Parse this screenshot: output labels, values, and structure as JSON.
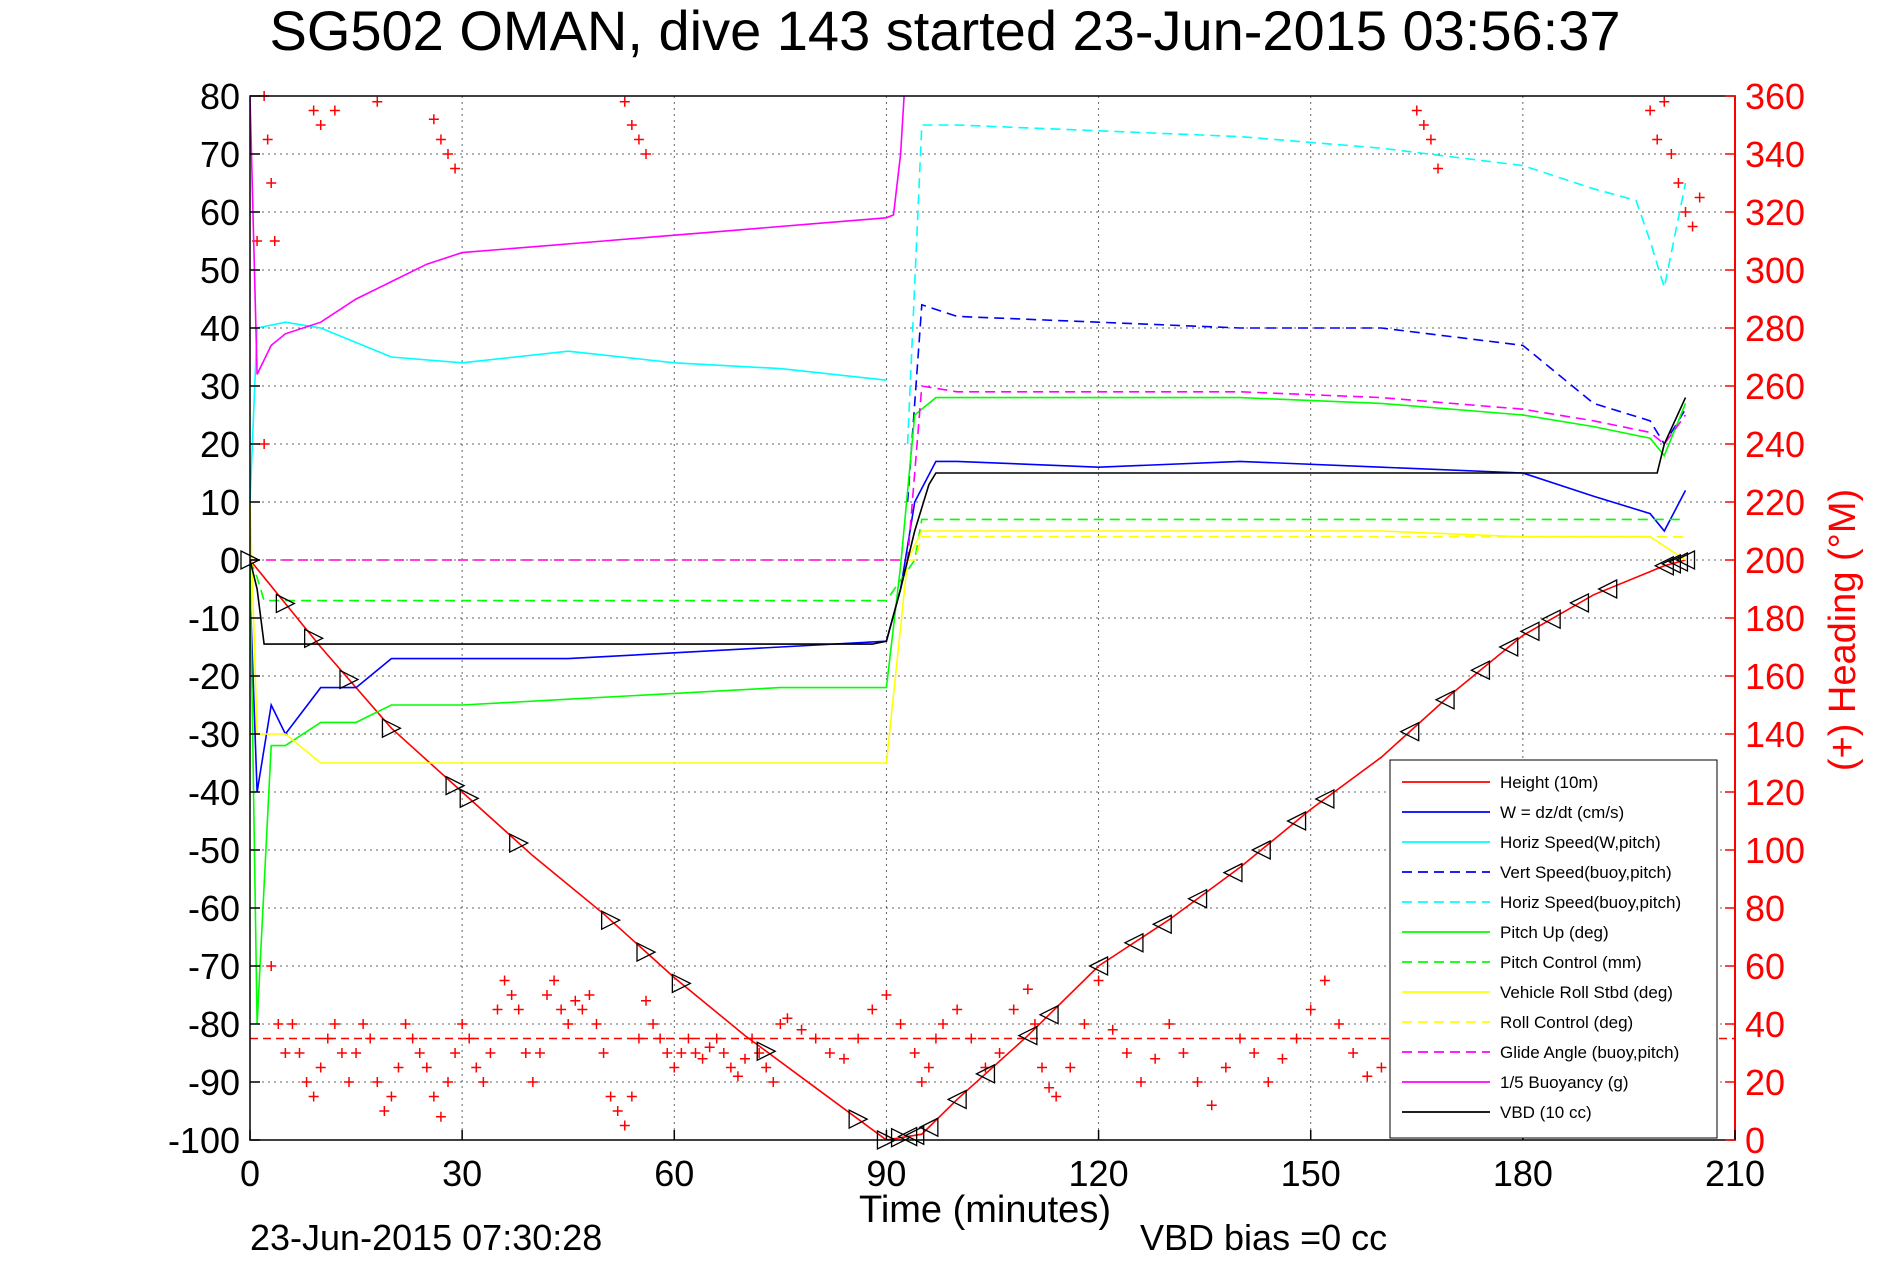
{
  "chart_data": {
    "type": "line",
    "title": "SG502 OMAN, dive 143 started 23-Jun-2015 03:56:37",
    "xlabel": "Time (minutes)",
    "ylabel": "",
    "ylabel_right": "(+) Heading (°M)",
    "xlim": [
      0,
      210
    ],
    "ylim": [
      -100,
      80
    ],
    "ylim_right": [
      0,
      360
    ],
    "x_ticks": [
      "0",
      "30",
      "60",
      "90",
      "120",
      "150",
      "180",
      "210"
    ],
    "y_ticks": [
      "80",
      "70",
      "60",
      "50",
      "40",
      "30",
      "20",
      "10",
      "0",
      "-10",
      "-20",
      "-30",
      "-40",
      "-50",
      "-60",
      "-70",
      "-80",
      "-90",
      "-100"
    ],
    "y_ticks_right": [
      "360",
      "340",
      "320",
      "300",
      "280",
      "260",
      "240",
      "220",
      "200",
      "180",
      "160",
      "140",
      "120",
      "100",
      "80",
      "60",
      "40",
      "20",
      "0"
    ],
    "grid": true,
    "legend_position": "bottom-right",
    "footer_left": "23-Jun-2015 07:30:28",
    "footer_right": "VBD bias =0 cc",
    "series": [
      {
        "name": "Height (10m)",
        "color": "#ff0000",
        "dash": "solid",
        "x": [
          0,
          10,
          20,
          30,
          40,
          50,
          60,
          70,
          80,
          90,
          95,
          100,
          110,
          120,
          130,
          140,
          150,
          160,
          170,
          180,
          190,
          200,
          203
        ],
        "y": [
          0,
          -15,
          -29,
          -40,
          -51,
          -61,
          -72,
          -82,
          -91,
          -100,
          -99,
          -93,
          -82,
          -70,
          -62,
          -53,
          -43,
          -34,
          -23,
          -13,
          -6,
          -1,
          0
        ]
      },
      {
        "name": "W = dz/dt (cm/s)",
        "color": "#0000ff",
        "dash": "solid",
        "x": [
          0,
          1,
          3,
          5,
          10,
          15,
          20,
          30,
          45,
          60,
          75,
          90,
          92,
          94,
          97,
          100,
          120,
          140,
          160,
          180,
          190,
          198,
          200,
          203
        ],
        "y": [
          -5,
          -40,
          -25,
          -30,
          -22,
          -22,
          -17,
          -17,
          -17,
          -16,
          -15,
          -14,
          -5,
          10,
          17,
          17,
          16,
          17,
          16,
          15,
          11,
          8,
          5,
          12
        ]
      },
      {
        "name": "Horiz Speed(W,pitch)",
        "color": "#00ffff",
        "dash": "solid",
        "x": [
          0,
          1,
          5,
          10,
          20,
          30,
          45,
          60,
          75,
          90
        ],
        "y": [
          10,
          40,
          41,
          40,
          35,
          34,
          36,
          34,
          33,
          31
        ]
      },
      {
        "name": "Vert Speed(buoy,pitch)",
        "color": "#0000ff",
        "dash": "dashed",
        "x": [
          93,
          95,
          100,
          120,
          140,
          160,
          180,
          190,
          198,
          200,
          203
        ],
        "y": [
          10,
          44,
          42,
          41,
          40,
          40,
          37,
          27,
          24,
          20,
          26
        ]
      },
      {
        "name": "Horiz Speed(buoy,pitch)",
        "color": "#00ffff",
        "dash": "dashed",
        "x": [
          93,
          95,
          100,
          120,
          140,
          160,
          180,
          190,
          196,
          198,
          200,
          203
        ],
        "y": [
          20,
          75,
          75,
          74,
          73,
          71,
          68,
          64,
          62,
          55,
          47,
          65
        ]
      },
      {
        "name": "Pitch Up (deg)",
        "color": "#00ff00",
        "dash": "solid",
        "x": [
          0,
          1,
          3,
          5,
          10,
          15,
          20,
          30,
          45,
          60,
          75,
          90,
          92,
          94,
          97,
          100,
          120,
          140,
          160,
          180,
          190,
          198,
          200,
          203
        ],
        "y": [
          0,
          -80,
          -32,
          -32,
          -28,
          -28,
          -25,
          -25,
          -24,
          -23,
          -22,
          -22,
          -1,
          25,
          28,
          28,
          28,
          28,
          27,
          25,
          23,
          21,
          18,
          27
        ]
      },
      {
        "name": "Pitch Control (mm)",
        "color": "#00ff00",
        "dash": "dashed",
        "x": [
          0,
          1,
          2,
          90,
          94,
          95,
          203
        ],
        "y": [
          0,
          -3,
          -7,
          -7,
          0,
          7,
          7
        ]
      },
      {
        "name": "Vehicle Roll Stbd (deg)",
        "color": "#ffff00",
        "dash": "solid",
        "x": [
          0,
          1,
          5,
          10,
          20,
          30,
          45,
          60,
          75,
          90,
          93,
          95,
          100,
          120,
          140,
          160,
          180,
          190,
          198,
          203
        ],
        "y": [
          10,
          -30,
          -30,
          -35,
          -35,
          -35,
          -35,
          -35,
          -35,
          -35,
          0,
          5,
          5,
          5,
          5,
          5,
          4,
          4,
          4,
          0
        ]
      },
      {
        "name": "Roll Control (deg)",
        "color": "#ffff00",
        "dash": "dashed",
        "x": [
          0,
          1,
          90,
          94,
          95,
          203
        ],
        "y": [
          0,
          0,
          0,
          0,
          4,
          4
        ]
      },
      {
        "name": "Glide Angle (buoy,pitch)",
        "color": "#ff00ff",
        "dash": "dashed",
        "x": [
          0,
          90,
          93,
          95,
          100,
          120,
          140,
          160,
          180,
          190,
          198,
          200,
          203
        ],
        "y": [
          0,
          0,
          0,
          30,
          29,
          29,
          29,
          28,
          26,
          24,
          22,
          20,
          25
        ]
      },
      {
        "name": "1/5 Buoyancy (g)",
        "color": "#ff00ff",
        "dash": "solid",
        "x": [
          0,
          1,
          3,
          5,
          10,
          15,
          20,
          25,
          30,
          40,
          50,
          60,
          70,
          80,
          90,
          91,
          92,
          92.5
        ],
        "y": [
          80,
          32,
          37,
          39,
          41,
          45,
          48,
          51,
          53,
          54,
          55,
          56,
          57,
          58,
          59,
          59.5,
          70,
          80
        ]
      },
      {
        "name": "VBD (10 cc)",
        "color": "#000000",
        "dash": "solid",
        "x": [
          0,
          1,
          2,
          88,
          90,
          92,
          94,
          96,
          97,
          198,
          199,
          200,
          203
        ],
        "y": [
          0,
          -5,
          -14.5,
          -14.5,
          -14,
          -5,
          5,
          13,
          15,
          15,
          15,
          20,
          28
        ]
      }
    ],
    "heading_points": [
      {
        "x": 1,
        "y": 310
      },
      {
        "x": 2,
        "y": 240
      },
      {
        "x": 3,
        "y": 60
      },
      {
        "x": 4,
        "y": 40
      },
      {
        "x": 5,
        "y": 30
      },
      {
        "x": 6,
        "y": 40
      },
      {
        "x": 7,
        "y": 30
      },
      {
        "x": 8,
        "y": 20
      },
      {
        "x": 9,
        "y": 15
      },
      {
        "x": 10,
        "y": 25
      },
      {
        "x": 11,
        "y": 35
      },
      {
        "x": 12,
        "y": 40
      },
      {
        "x": 13,
        "y": 30
      },
      {
        "x": 14,
        "y": 20
      },
      {
        "x": 15,
        "y": 30
      },
      {
        "x": 16,
        "y": 40
      },
      {
        "x": 17,
        "y": 35
      },
      {
        "x": 18,
        "y": 20
      },
      {
        "x": 19,
        "y": 10
      },
      {
        "x": 20,
        "y": 15
      },
      {
        "x": 21,
        "y": 25
      },
      {
        "x": 22,
        "y": 40
      },
      {
        "x": 23,
        "y": 35
      },
      {
        "x": 24,
        "y": 30
      },
      {
        "x": 25,
        "y": 25
      },
      {
        "x": 26,
        "y": 15
      },
      {
        "x": 27,
        "y": 8
      },
      {
        "x": 28,
        "y": 20
      },
      {
        "x": 29,
        "y": 30
      },
      {
        "x": 30,
        "y": 40
      },
      {
        "x": 31,
        "y": 35
      },
      {
        "x": 32,
        "y": 25
      },
      {
        "x": 33,
        "y": 20
      },
      {
        "x": 34,
        "y": 30
      },
      {
        "x": 35,
        "y": 45
      },
      {
        "x": 36,
        "y": 55
      },
      {
        "x": 37,
        "y": 50
      },
      {
        "x": 38,
        "y": 45
      },
      {
        "x": 39,
        "y": 30
      },
      {
        "x": 40,
        "y": 20
      },
      {
        "x": 41,
        "y": 30
      },
      {
        "x": 42,
        "y": 50
      },
      {
        "x": 43,
        "y": 55
      },
      {
        "x": 44,
        "y": 45
      },
      {
        "x": 45,
        "y": 40
      },
      {
        "x": 46,
        "y": 48
      },
      {
        "x": 47,
        "y": 45
      },
      {
        "x": 48,
        "y": 50
      },
      {
        "x": 49,
        "y": 40
      },
      {
        "x": 50,
        "y": 30
      },
      {
        "x": 51,
        "y": 15
      },
      {
        "x": 52,
        "y": 10
      },
      {
        "x": 53,
        "y": 5
      },
      {
        "x": 54,
        "y": 15
      },
      {
        "x": 55,
        "y": 35
      },
      {
        "x": 56,
        "y": 48
      },
      {
        "x": 57,
        "y": 40
      },
      {
        "x": 58,
        "y": 35
      },
      {
        "x": 59,
        "y": 30
      },
      {
        "x": 60,
        "y": 25
      },
      {
        "x": 61,
        "y": 30
      },
      {
        "x": 62,
        "y": 35
      },
      {
        "x": 63,
        "y": 30
      },
      {
        "x": 64,
        "y": 28
      },
      {
        "x": 65,
        "y": 32
      },
      {
        "x": 66,
        "y": 35
      },
      {
        "x": 67,
        "y": 30
      },
      {
        "x": 68,
        "y": 25
      },
      {
        "x": 69,
        "y": 22
      },
      {
        "x": 70,
        "y": 28
      },
      {
        "x": 71,
        "y": 35
      },
      {
        "x": 72,
        "y": 30
      },
      {
        "x": 73,
        "y": 25
      },
      {
        "x": 74,
        "y": 20
      },
      {
        "x": 75,
        "y": 40
      },
      {
        "x": 76,
        "y": 42
      },
      {
        "x": 78,
        "y": 38
      },
      {
        "x": 80,
        "y": 35
      },
      {
        "x": 82,
        "y": 30
      },
      {
        "x": 84,
        "y": 28
      },
      {
        "x": 86,
        "y": 35
      },
      {
        "x": 88,
        "y": 45
      },
      {
        "x": 90,
        "y": 50
      },
      {
        "x": 92,
        "y": 40
      },
      {
        "x": 94,
        "y": 30
      },
      {
        "x": 95,
        "y": 20
      },
      {
        "x": 96,
        "y": 25
      },
      {
        "x": 97,
        "y": 35
      },
      {
        "x": 98,
        "y": 40
      },
      {
        "x": 100,
        "y": 45
      },
      {
        "x": 102,
        "y": 35
      },
      {
        "x": 104,
        "y": 25
      },
      {
        "x": 106,
        "y": 30
      },
      {
        "x": 108,
        "y": 45
      },
      {
        "x": 110,
        "y": 52
      },
      {
        "x": 111,
        "y": 40
      },
      {
        "x": 112,
        "y": 25
      },
      {
        "x": 113,
        "y": 18
      },
      {
        "x": 114,
        "y": 15
      },
      {
        "x": 116,
        "y": 25
      },
      {
        "x": 118,
        "y": 40
      },
      {
        "x": 120,
        "y": 55
      },
      {
        "x": 122,
        "y": 38
      },
      {
        "x": 124,
        "y": 30
      },
      {
        "x": 126,
        "y": 20
      },
      {
        "x": 128,
        "y": 28
      },
      {
        "x": 130,
        "y": 40
      },
      {
        "x": 132,
        "y": 30
      },
      {
        "x": 134,
        "y": 20
      },
      {
        "x": 136,
        "y": 12
      },
      {
        "x": 138,
        "y": 25
      },
      {
        "x": 140,
        "y": 35
      },
      {
        "x": 142,
        "y": 30
      },
      {
        "x": 144,
        "y": 20
      },
      {
        "x": 146,
        "y": 28
      },
      {
        "x": 148,
        "y": 35
      },
      {
        "x": 150,
        "y": 45
      },
      {
        "x": 152,
        "y": 55
      },
      {
        "x": 154,
        "y": 40
      },
      {
        "x": 156,
        "y": 30
      },
      {
        "x": 158,
        "y": 22
      },
      {
        "x": 160,
        "y": 25
      },
      {
        "x": 162,
        "y": 30
      },
      {
        "x": 164,
        "y": 20
      },
      {
        "x": 166,
        "y": 30
      },
      {
        "x": 2,
        "y": 360
      },
      {
        "x": 2.5,
        "y": 345
      },
      {
        "x": 3,
        "y": 330
      },
      {
        "x": 3.5,
        "y": 310
      },
      {
        "x": 9,
        "y": 355
      },
      {
        "x": 10,
        "y": 350
      },
      {
        "x": 12,
        "y": 355
      },
      {
        "x": 18,
        "y": 358
      },
      {
        "x": 26,
        "y": 352
      },
      {
        "x": 27,
        "y": 345
      },
      {
        "x": 28,
        "y": 340
      },
      {
        "x": 29,
        "y": 335
      },
      {
        "x": 53,
        "y": 358
      },
      {
        "x": 54,
        "y": 350
      },
      {
        "x": 55,
        "y": 345
      },
      {
        "x": 56,
        "y": 340
      },
      {
        "x": 165,
        "y": 355
      },
      {
        "x": 166,
        "y": 350
      },
      {
        "x": 167,
        "y": 345
      },
      {
        "x": 168,
        "y": 335
      },
      {
        "x": 198,
        "y": 355
      },
      {
        "x": 199,
        "y": 345
      },
      {
        "x": 200,
        "y": 358
      },
      {
        "x": 201,
        "y": 340
      },
      {
        "x": 202,
        "y": 330
      },
      {
        "x": 203,
        "y": 320
      },
      {
        "x": 204,
        "y": 315
      },
      {
        "x": 205,
        "y": 325
      }
    ],
    "heading_mean_line": 35,
    "height_markers_x": [
      0,
      5,
      9,
      14,
      20,
      29,
      31,
      38,
      51,
      56,
      61,
      73,
      86,
      90,
      92,
      93,
      94,
      96,
      100,
      104,
      110,
      113,
      120,
      125,
      129,
      134,
      139,
      143,
      148,
      152,
      164,
      169,
      174,
      178,
      181,
      184,
      188,
      192,
      200,
      201,
      202,
      203
    ],
    "height_marker_color": "#000000",
    "background": "#ffffff",
    "grid_color": "#000000",
    "right_axis_color": "#ff0000"
  }
}
